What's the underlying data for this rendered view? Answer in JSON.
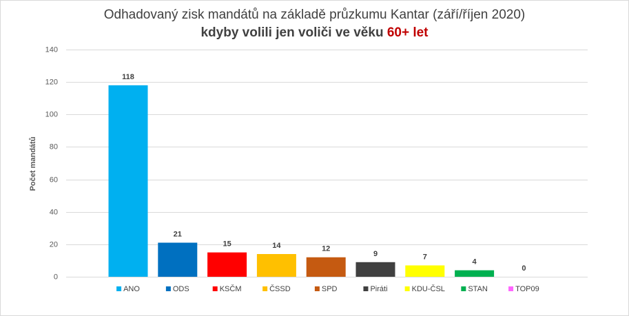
{
  "chart_data": {
    "type": "bar",
    "title": "Odhadovaný zisk mandátů na základě průzkumu Kantar (září/říjen  2020)",
    "subtitle": {
      "prefix": "kdyby volili jen voliči ve věku ",
      "highlight": "60+ let",
      "highlight_color": "#c00000"
    },
    "ylabel": "Počet mandátů",
    "xlabel": "",
    "ylim": [
      0,
      140
    ],
    "yticks": [
      0,
      20,
      40,
      60,
      80,
      100,
      120,
      140
    ],
    "grid": true,
    "legend_position": "bottom",
    "categories": [
      "ANO",
      "ODS",
      "KSČM",
      "ČSSD",
      "SPD",
      "Piráti",
      "KDU-ČSL",
      "STAN",
      "TOP09"
    ],
    "values": [
      118,
      21,
      15,
      14,
      12,
      9,
      7,
      4,
      0
    ],
    "colors": [
      "#00b0f0",
      "#0070c0",
      "#ff0000",
      "#ffc000",
      "#c55a11",
      "#404040",
      "#ffff00",
      "#00b050",
      "#ff66ff"
    ]
  }
}
